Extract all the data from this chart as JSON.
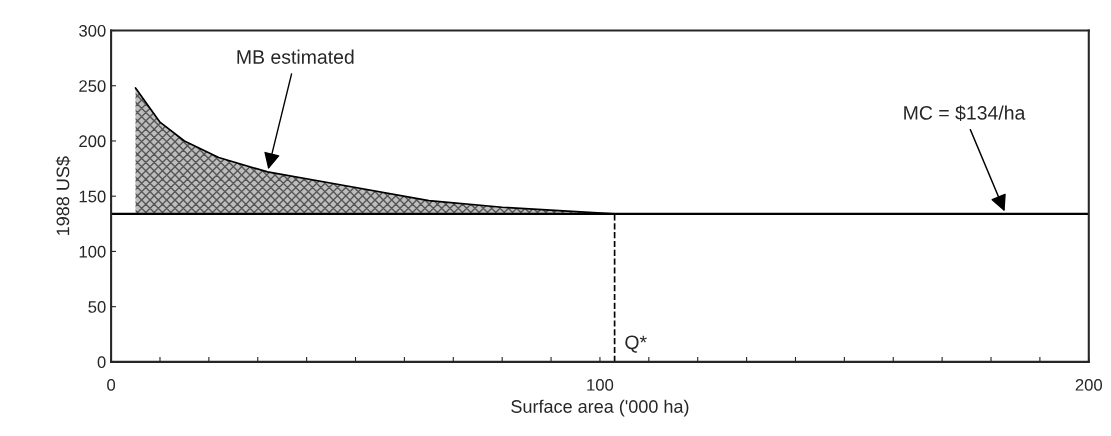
{
  "chart_data": {
    "type": "line",
    "xlabel": "Surface area ('000 ha)",
    "ylabel": "1988 US$",
    "series": [
      {
        "color": "#000000",
        "x": [
          5,
          10,
          15,
          22,
          32,
          46,
          65,
          80,
          103
        ],
        "values": [
          248,
          217,
          200,
          185,
          172,
          161,
          146,
          140,
          134
        ],
        "lower": [
          134,
          134,
          134,
          134,
          134,
          134,
          134,
          134,
          134
        ],
        "upper": [
          248,
          217,
          200,
          185,
          172,
          161,
          146,
          140,
          134
        ]
      }
    ],
    "ref_lines": [
      {
        "axis": "y",
        "value": 134,
        "color": "#000000",
        "line_style": "solid"
      },
      {
        "axis": "x",
        "value": 103,
        "label": "Q*",
        "color": "#000000",
        "line_style": "dashed"
      }
    ],
    "annotations": [
      {
        "text": "MB estimated",
        "x": 32,
        "y": 172
      },
      {
        "text": "MC = $134/ha",
        "x": 183,
        "y": 134
      }
    ],
    "xlim": [
      0,
      200
    ],
    "ylim": [
      0,
      300
    ],
    "xticks": [
      0,
      {
        "value": 10,
        "label": null
      },
      {
        "value": 20,
        "label": null
      },
      {
        "value": 30,
        "label": null
      },
      {
        "value": 40,
        "label": null
      },
      {
        "value": 50,
        "label": null
      },
      {
        "value": 60,
        "label": null
      },
      {
        "value": 70,
        "label": null
      },
      {
        "value": 80,
        "label": null
      },
      {
        "value": 90,
        "label": null
      },
      100,
      {
        "value": 110,
        "label": null
      },
      {
        "value": 120,
        "label": null
      },
      {
        "value": 130,
        "label": null
      },
      {
        "value": 140,
        "label": null
      },
      {
        "value": 150,
        "label": null
      },
      {
        "value": 160,
        "label": null
      },
      {
        "value": 170,
        "label": null
      },
      {
        "value": 180,
        "label": null
      },
      {
        "value": 190,
        "label": null
      },
      200
    ],
    "yticks": [
      0,
      50,
      100,
      150,
      200,
      250,
      300
    ],
    "grid": false,
    "legend": false
  }
}
